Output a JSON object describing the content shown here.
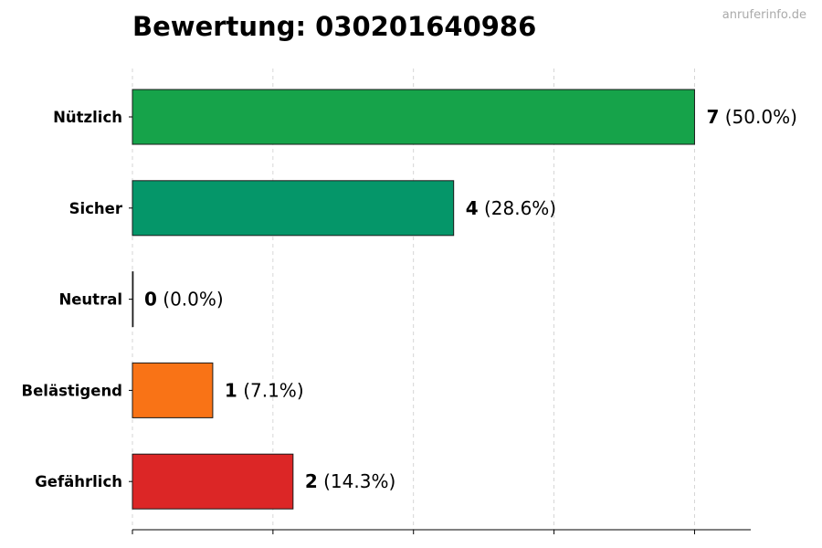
{
  "watermark": "anruferinfo.de",
  "chart_data": {
    "type": "bar",
    "orientation": "horizontal",
    "title": "Bewertung: 030201640986",
    "xlabel": "",
    "ylabel": "",
    "categories": [
      "Nützlich",
      "Sicher",
      "Neutral",
      "Belästigend",
      "Gefährlich"
    ],
    "values": [
      7,
      4,
      0,
      1,
      2
    ],
    "percent_labels": [
      "(50.0%)",
      "(28.6%)",
      "(0.0%)",
      "(7.1%)",
      "(14.3%)"
    ],
    "colors": [
      "#16a34a",
      "#059669",
      "#9ca3af",
      "#f97316",
      "#dc2626"
    ],
    "xlim": [
      0,
      7.7
    ],
    "x_gridlines": [
      0,
      1.75,
      3.5,
      5.25,
      7
    ],
    "grid": "vertical dashed",
    "legend": "none"
  }
}
